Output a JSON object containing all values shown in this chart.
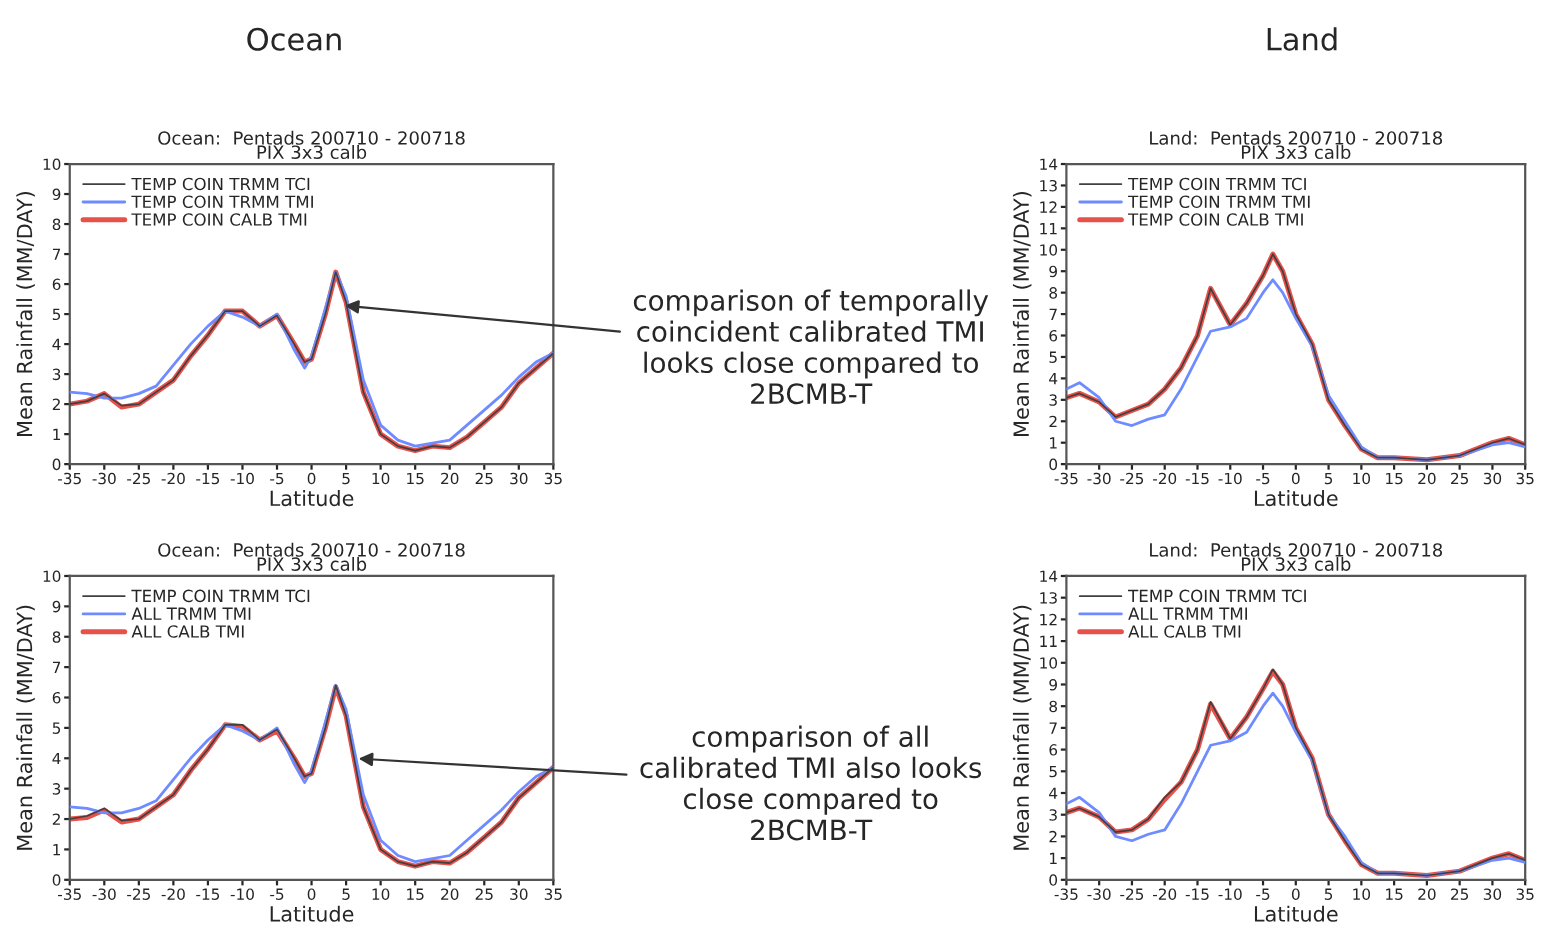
{
  "chart_data": [
    {
      "type": "line",
      "title": "Ocean:  Pentads 200710 - 200718",
      "subtitle": "PIX 3x3 calb",
      "xlabel": "Latitude",
      "ylabel": "Mean Rainfall (MM/DAY)",
      "annotations": [
        "Ocean",
        {
          "text": "comparison of temporally\ncoincident calibrated TMI\nlooks close compared to\n2BCMB-T",
          "x": 4,
          "y": 5.3
        }
      ],
      "x": [
        -35,
        -32.5,
        -30,
        -27.5,
        -25,
        -22.5,
        -20,
        -17.5,
        -15,
        -12.5,
        -10,
        -7.5,
        -5,
        -2.5,
        -1,
        0,
        2,
        3.5,
        5,
        7.5,
        10,
        12.5,
        15,
        17.5,
        20,
        22.5,
        25,
        27.5,
        30,
        32.5,
        35
      ],
      "series": [
        {
          "name": "TEMP COIN TRMM TCI",
          "color": "#404040",
          "values": [
            2.0,
            2.1,
            2.35,
            1.95,
            2.0,
            2.4,
            2.8,
            3.6,
            4.3,
            5.1,
            5.1,
            4.6,
            4.95,
            4.0,
            3.4,
            3.5,
            5.0,
            6.4,
            5.4,
            2.4,
            1.0,
            0.6,
            0.45,
            0.6,
            0.55,
            0.9,
            1.4,
            1.9,
            2.7,
            3.2,
            3.7
          ]
        },
        {
          "name": "TEMP COIN TRMM TMI",
          "color": "#6e8cff",
          "values": [
            2.4,
            2.35,
            2.2,
            2.2,
            2.35,
            2.6,
            3.3,
            4.0,
            4.6,
            5.1,
            4.9,
            4.6,
            5.0,
            3.8,
            3.2,
            3.6,
            5.2,
            6.4,
            5.6,
            2.8,
            1.3,
            0.8,
            0.6,
            0.7,
            0.8,
            1.3,
            1.8,
            2.3,
            2.9,
            3.4,
            3.7
          ]
        },
        {
          "name": "TEMP COIN CALB TMI",
          "color": "#e8504a",
          "values": [
            2.0,
            2.1,
            2.35,
            1.9,
            2.0,
            2.4,
            2.8,
            3.6,
            4.3,
            5.1,
            5.1,
            4.6,
            4.95,
            4.0,
            3.4,
            3.5,
            5.0,
            6.4,
            5.4,
            2.4,
            1.0,
            0.6,
            0.45,
            0.6,
            0.55,
            0.9,
            1.4,
            1.9,
            2.7,
            3.2,
            3.7
          ]
        }
      ],
      "xlim": [
        -35,
        35
      ],
      "xticks": [
        -35,
        -30,
        -25,
        -20,
        -15,
        -10,
        -5,
        0,
        5,
        10,
        15,
        20,
        25,
        30,
        35
      ],
      "ylim": [
        0,
        10
      ],
      "yticks": [
        0,
        1,
        2,
        3,
        4,
        5,
        6,
        7,
        8,
        9,
        10
      ],
      "grid": false,
      "legend": "top left"
    },
    {
      "type": "line",
      "title": "Land:  Pentads 200710 - 200718",
      "subtitle": "PIX 3x3 calb",
      "xlabel": "Latitude",
      "ylabel": "Mean Rainfall (MM/DAY)",
      "annotations": [
        "Land"
      ],
      "x": [
        -35,
        -33,
        -30,
        -27.5,
        -25,
        -22.5,
        -20,
        -17.5,
        -15,
        -13,
        -10,
        -7.5,
        -5,
        -3.5,
        -2,
        0,
        2.5,
        5,
        7.5,
        10,
        12.5,
        15,
        20,
        25,
        30,
        32.5,
        35
      ],
      "series": [
        {
          "name": "TEMP COIN TRMM TCI",
          "color": "#404040",
          "values": [
            3.1,
            3.3,
            2.9,
            2.2,
            2.5,
            2.8,
            3.5,
            4.5,
            6.0,
            8.2,
            6.5,
            7.5,
            8.8,
            9.8,
            9.0,
            7.0,
            5.6,
            3.0,
            1.8,
            0.7,
            0.3,
            0.3,
            0.2,
            0.4,
            1.0,
            1.2,
            0.9
          ]
        },
        {
          "name": "TEMP COIN TRMM TMI",
          "color": "#6e8cff",
          "values": [
            3.5,
            3.8,
            3.1,
            2.0,
            1.8,
            2.1,
            2.3,
            3.5,
            5.0,
            6.2,
            6.4,
            6.8,
            8.0,
            8.6,
            8.0,
            6.8,
            5.5,
            3.2,
            2.0,
            0.8,
            0.3,
            0.3,
            0.2,
            0.4,
            0.9,
            1.0,
            0.8
          ]
        },
        {
          "name": "TEMP COIN CALB TMI",
          "color": "#e8504a",
          "values": [
            3.1,
            3.3,
            2.9,
            2.2,
            2.5,
            2.8,
            3.5,
            4.5,
            6.0,
            8.2,
            6.5,
            7.5,
            8.8,
            9.8,
            9.0,
            7.0,
            5.6,
            3.0,
            1.8,
            0.7,
            0.3,
            0.3,
            0.2,
            0.4,
            1.0,
            1.2,
            0.9
          ]
        }
      ],
      "xlim": [
        -35,
        35
      ],
      "xticks": [
        -35,
        -30,
        -25,
        -20,
        -15,
        -10,
        -5,
        0,
        5,
        10,
        15,
        20,
        25,
        30,
        35
      ],
      "ylim": [
        0,
        14
      ],
      "yticks": [
        0,
        1,
        2,
        3,
        4,
        5,
        6,
        7,
        8,
        9,
        10,
        11,
        12,
        13,
        14
      ],
      "grid": false,
      "legend": "top left"
    },
    {
      "type": "line",
      "title": "Ocean:  Pentads 200710 - 200718",
      "subtitle": "PIX 3x3 calb",
      "xlabel": "Latitude",
      "ylabel": "Mean Rainfall (MM/DAY)",
      "annotations": [
        {
          "text": "comparison of all\ncalibrated TMI also looks\nclose compared to\n2BCMB-T",
          "x": 6,
          "y": 4
        }
      ],
      "x": [
        -35,
        -32.5,
        -30,
        -27.5,
        -25,
        -22.5,
        -20,
        -17.5,
        -15,
        -12.5,
        -10,
        -7.5,
        -5,
        -2.5,
        -1,
        0,
        2,
        3.5,
        5,
        7.5,
        10,
        12.5,
        15,
        17.5,
        20,
        22.5,
        25,
        27.5,
        30,
        32.5,
        35
      ],
      "series": [
        {
          "name": "TEMP COIN TRMM TCI",
          "color": "#404040",
          "values": [
            2.0,
            2.1,
            2.35,
            1.95,
            2.0,
            2.4,
            2.8,
            3.6,
            4.3,
            5.1,
            5.1,
            4.6,
            4.95,
            4.0,
            3.4,
            3.5,
            5.0,
            6.4,
            5.4,
            2.4,
            1.0,
            0.6,
            0.45,
            0.6,
            0.55,
            0.9,
            1.4,
            1.9,
            2.7,
            3.2,
            3.7
          ]
        },
        {
          "name": "ALL TRMM TMI",
          "color": "#6e8cff",
          "values": [
            2.4,
            2.35,
            2.2,
            2.2,
            2.35,
            2.6,
            3.3,
            4.0,
            4.6,
            5.1,
            4.9,
            4.6,
            5.0,
            3.8,
            3.2,
            3.6,
            5.2,
            6.4,
            5.6,
            2.8,
            1.3,
            0.8,
            0.6,
            0.7,
            0.8,
            1.3,
            1.8,
            2.3,
            2.9,
            3.4,
            3.7
          ]
        },
        {
          "name": "ALL CALB TMI",
          "color": "#e8504a",
          "values": [
            2.0,
            2.05,
            2.3,
            1.9,
            2.0,
            2.4,
            2.8,
            3.6,
            4.3,
            5.1,
            5.05,
            4.6,
            4.9,
            4.0,
            3.4,
            3.5,
            5.0,
            6.35,
            5.4,
            2.4,
            1.0,
            0.6,
            0.45,
            0.6,
            0.55,
            0.9,
            1.4,
            1.9,
            2.7,
            3.2,
            3.7
          ]
        }
      ],
      "xlim": [
        -35,
        35
      ],
      "xticks": [
        -35,
        -30,
        -25,
        -20,
        -15,
        -10,
        -5,
        0,
        5,
        10,
        15,
        20,
        25,
        30,
        35
      ],
      "ylim": [
        0,
        10
      ],
      "yticks": [
        0,
        1,
        2,
        3,
        4,
        5,
        6,
        7,
        8,
        9,
        10
      ],
      "grid": false,
      "legend": "top left"
    },
    {
      "type": "line",
      "title": "Land:  Pentads 200710 - 200718",
      "subtitle": "PIX 3x3 calb",
      "xlabel": "Latitude",
      "ylabel": "Mean Rainfall (MM/DAY)",
      "x": [
        -35,
        -33,
        -30,
        -27.5,
        -25,
        -22.5,
        -20,
        -17.5,
        -15,
        -13,
        -10,
        -7.5,
        -5,
        -3.5,
        -2,
        0,
        2.5,
        5,
        7.5,
        10,
        12.5,
        15,
        20,
        25,
        30,
        32.5,
        35
      ],
      "series": [
        {
          "name": "TEMP COIN TRMM TCI",
          "color": "#404040",
          "values": [
            3.1,
            3.3,
            2.9,
            2.2,
            2.3,
            2.8,
            3.8,
            4.5,
            6.0,
            8.2,
            6.5,
            7.5,
            8.8,
            9.7,
            9.0,
            7.0,
            5.6,
            3.0,
            1.8,
            0.7,
            0.3,
            0.3,
            0.2,
            0.4,
            1.0,
            1.2,
            0.9
          ]
        },
        {
          "name": "ALL TRMM TMI",
          "color": "#6e8cff",
          "values": [
            3.5,
            3.8,
            3.1,
            2.0,
            1.8,
            2.1,
            2.3,
            3.5,
            5.0,
            6.2,
            6.4,
            6.8,
            8.0,
            8.6,
            8.0,
            6.8,
            5.5,
            3.0,
            2.0,
            0.8,
            0.3,
            0.3,
            0.2,
            0.4,
            0.9,
            1.0,
            0.8
          ]
        },
        {
          "name": "ALL CALB TMI",
          "color": "#e8504a",
          "values": [
            3.1,
            3.3,
            2.9,
            2.2,
            2.3,
            2.8,
            3.7,
            4.5,
            6.0,
            8.1,
            6.5,
            7.5,
            8.8,
            9.6,
            9.0,
            7.0,
            5.6,
            3.0,
            1.8,
            0.7,
            0.3,
            0.3,
            0.2,
            0.4,
            1.0,
            1.2,
            0.9
          ]
        }
      ],
      "xlim": [
        -35,
        35
      ],
      "xticks": [
        -35,
        -30,
        -25,
        -20,
        -15,
        -10,
        -5,
        0,
        5,
        10,
        15,
        20,
        25,
        30,
        35
      ],
      "ylim": [
        0,
        14
      ],
      "yticks": [
        0,
        1,
        2,
        3,
        4,
        5,
        6,
        7,
        8,
        9,
        10,
        11,
        12,
        13,
        14
      ],
      "grid": false,
      "legend": "top left"
    }
  ]
}
